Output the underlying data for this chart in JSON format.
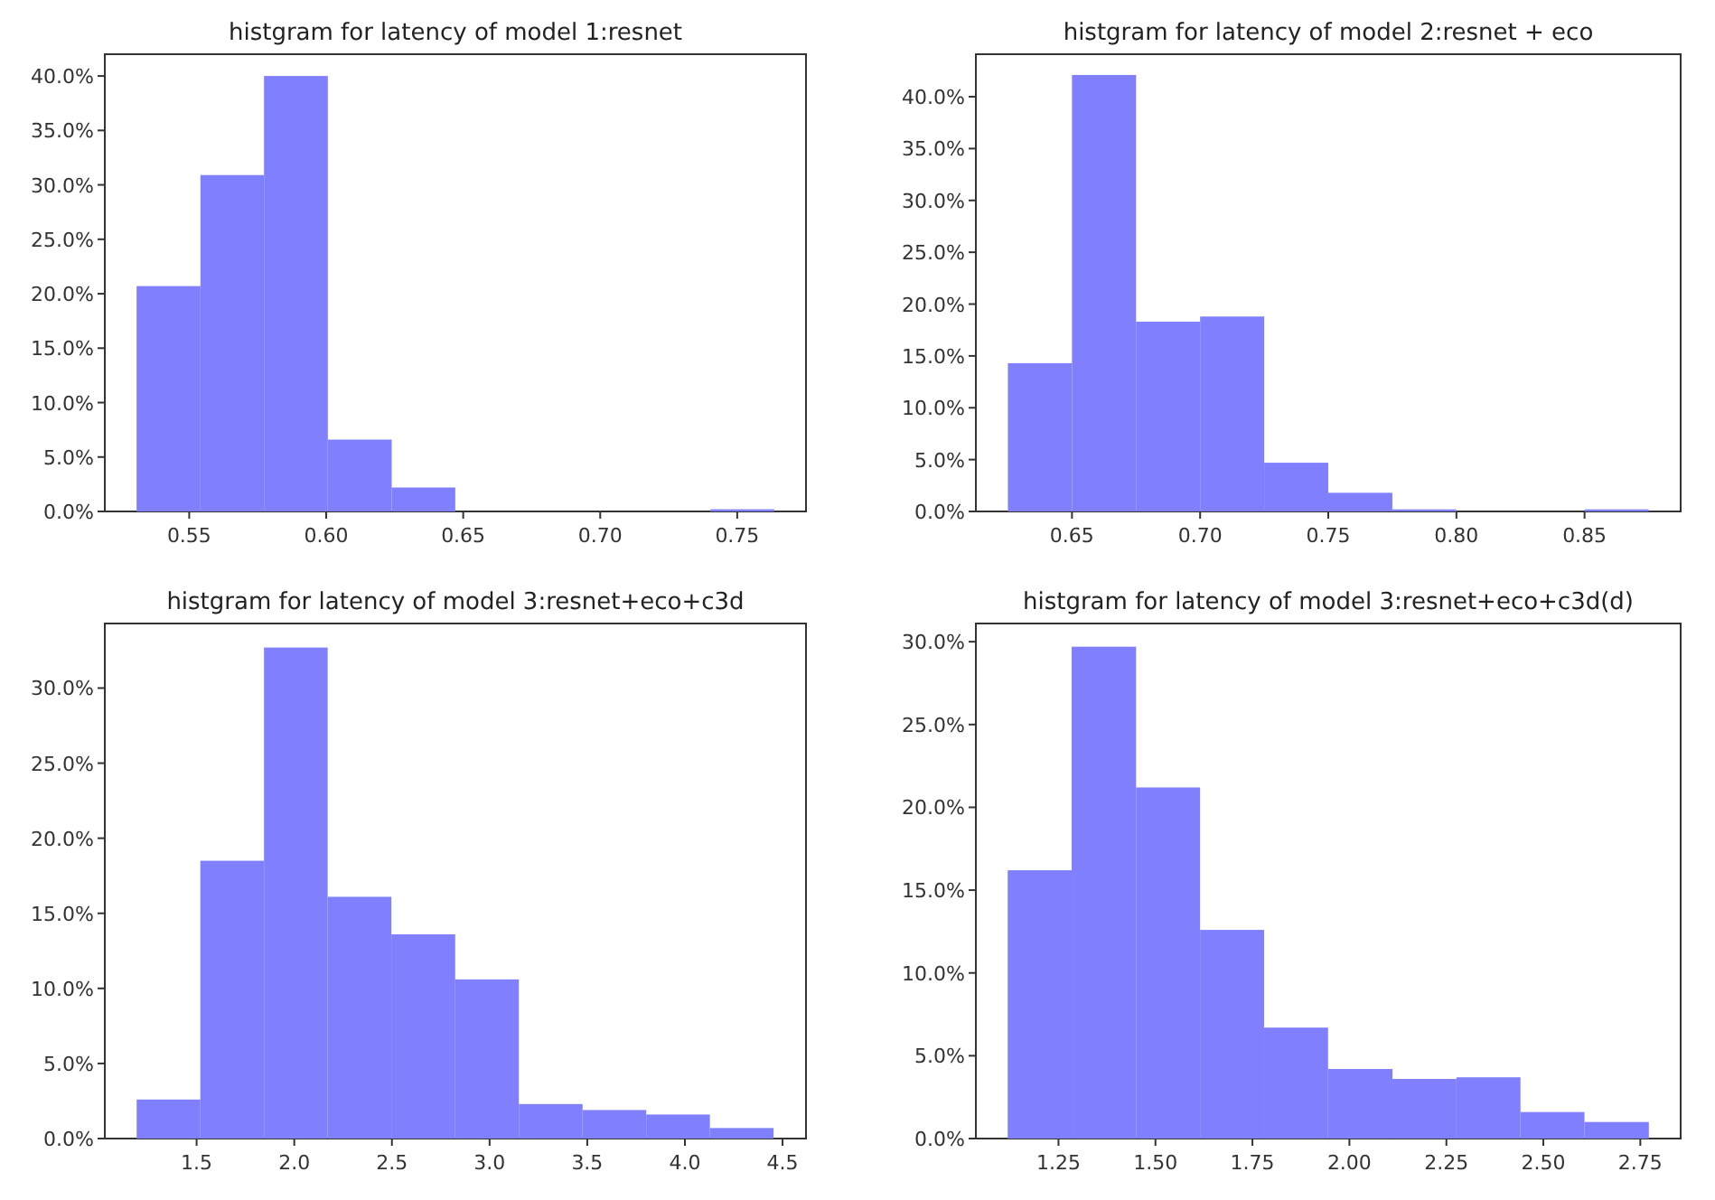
{
  "chart_data": [
    {
      "type": "histogram",
      "title": "histgram for latency of model 1:resnet",
      "color": "#8080ff",
      "bins": [
        0.5308,
        0.5541,
        0.5773,
        0.6006,
        0.6239,
        0.6471,
        0.6704,
        0.6937,
        0.717,
        0.7402,
        0.7635
      ],
      "values": [
        20.7,
        30.9,
        40.0,
        6.6,
        2.2,
        0,
        0,
        0,
        0,
        0.2
      ],
      "xlim": [
        0.5192,
        0.7751
      ],
      "ylim": [
        0,
        42
      ],
      "xticks": [
        0.55,
        {
          "value": 0.6,
          "label": "0.60"
        },
        0.65,
        {
          "value": 0.7,
          "label": "0.70"
        },
        0.75
      ],
      "yticks": [
        {
          "value": 0,
          "label": "0.0%"
        },
        {
          "value": 5,
          "label": "5.0%"
        },
        {
          "value": 10,
          "label": "10.0%"
        },
        {
          "value": 15,
          "label": "15.0%"
        },
        {
          "value": 20,
          "label": "20.0%"
        },
        {
          "value": 25,
          "label": "25.0%"
        },
        {
          "value": 30,
          "label": "30.0%"
        },
        {
          "value": 35,
          "label": "35.0%"
        },
        {
          "value": 40,
          "label": "40.0%"
        }
      ]
    },
    {
      "type": "histogram",
      "title": "histgram for latency of model 2:resnet + eco",
      "color": "#8080ff",
      "bins": [
        0.625,
        0.65,
        0.675,
        0.7,
        0.725,
        0.75,
        0.775,
        0.8,
        0.825,
        0.85,
        0.875
      ],
      "values": [
        14.3,
        42.1,
        18.3,
        18.8,
        4.7,
        1.8,
        0.2,
        0,
        0,
        0.2
      ],
      "xlim": [
        0.6125,
        0.8875
      ],
      "ylim": [
        0,
        44.1
      ],
      "xticks": [
        0.65,
        {
          "value": 0.7,
          "label": "0.70"
        },
        0.75,
        {
          "value": 0.8,
          "label": "0.80"
        },
        0.85
      ],
      "yticks": [
        {
          "value": 0,
          "label": "0.0%"
        },
        {
          "value": 5,
          "label": "5.0%"
        },
        {
          "value": 10,
          "label": "10.0%"
        },
        {
          "value": 15,
          "label": "15.0%"
        },
        {
          "value": 20,
          "label": "20.0%"
        },
        {
          "value": 25,
          "label": "25.0%"
        },
        {
          "value": 30,
          "label": "30.0%"
        },
        {
          "value": 35,
          "label": "35.0%"
        },
        {
          "value": 40,
          "label": "40.0%"
        }
      ]
    },
    {
      "type": "histogram",
      "title": "histgram for latency of model 3:resnet+eco+c3d",
      "color": "#8080ff",
      "bins": [
        1.193,
        1.519,
        1.845,
        2.171,
        2.497,
        2.824,
        3.15,
        3.476,
        3.802,
        4.128,
        4.454
      ],
      "values": [
        2.6,
        18.5,
        32.7,
        16.1,
        13.6,
        10.6,
        2.3,
        1.9,
        1.6,
        0.7
      ],
      "xlim": [
        1.03,
        4.62
      ],
      "ylim": [
        0,
        34.3
      ],
      "xticks": [
        1.5,
        {
          "value": 2,
          "label": "2.0"
        },
        2.5,
        {
          "value": 3,
          "label": "3.0"
        },
        3.5,
        {
          "value": 4,
          "label": "4.0"
        },
        4.5
      ],
      "yticks": [
        {
          "value": 0,
          "label": "0.0%"
        },
        {
          "value": 5,
          "label": "5.0%"
        },
        {
          "value": 10,
          "label": "10.0%"
        },
        {
          "value": 15,
          "label": "15.0%"
        },
        {
          "value": 20,
          "label": "20.0%"
        },
        {
          "value": 25,
          "label": "25.0%"
        },
        {
          "value": 30,
          "label": "30.0%"
        }
      ]
    },
    {
      "type": "histogram",
      "title": "histgram for latency of model 3:resnet+eco+c3d(d)",
      "color": "#8080ff",
      "bins": [
        1.119,
        1.284,
        1.45,
        1.615,
        1.78,
        1.945,
        2.111,
        2.276,
        2.441,
        2.606,
        2.772
      ],
      "values": [
        16.2,
        29.7,
        21.2,
        12.6,
        6.7,
        4.2,
        3.6,
        3.7,
        1.6,
        1.0
      ],
      "xlim": [
        1.037,
        2.854
      ],
      "ylim": [
        0,
        31.1
      ],
      "xticks": [
        1.25,
        {
          "value": 1.5,
          "label": "1.50"
        },
        1.75,
        {
          "value": 2,
          "label": "2.00"
        },
        2.25,
        {
          "value": 2.5,
          "label": "2.50"
        },
        2.75
      ],
      "yticks": [
        {
          "value": 0,
          "label": "0.0%"
        },
        {
          "value": 5,
          "label": "5.0%"
        },
        {
          "value": 10,
          "label": "10.0%"
        },
        {
          "value": 15,
          "label": "15.0%"
        },
        {
          "value": 20,
          "label": "20.0%"
        },
        {
          "value": 25,
          "label": "25.0%"
        },
        {
          "value": 30,
          "label": "30.0%"
        }
      ]
    }
  ]
}
